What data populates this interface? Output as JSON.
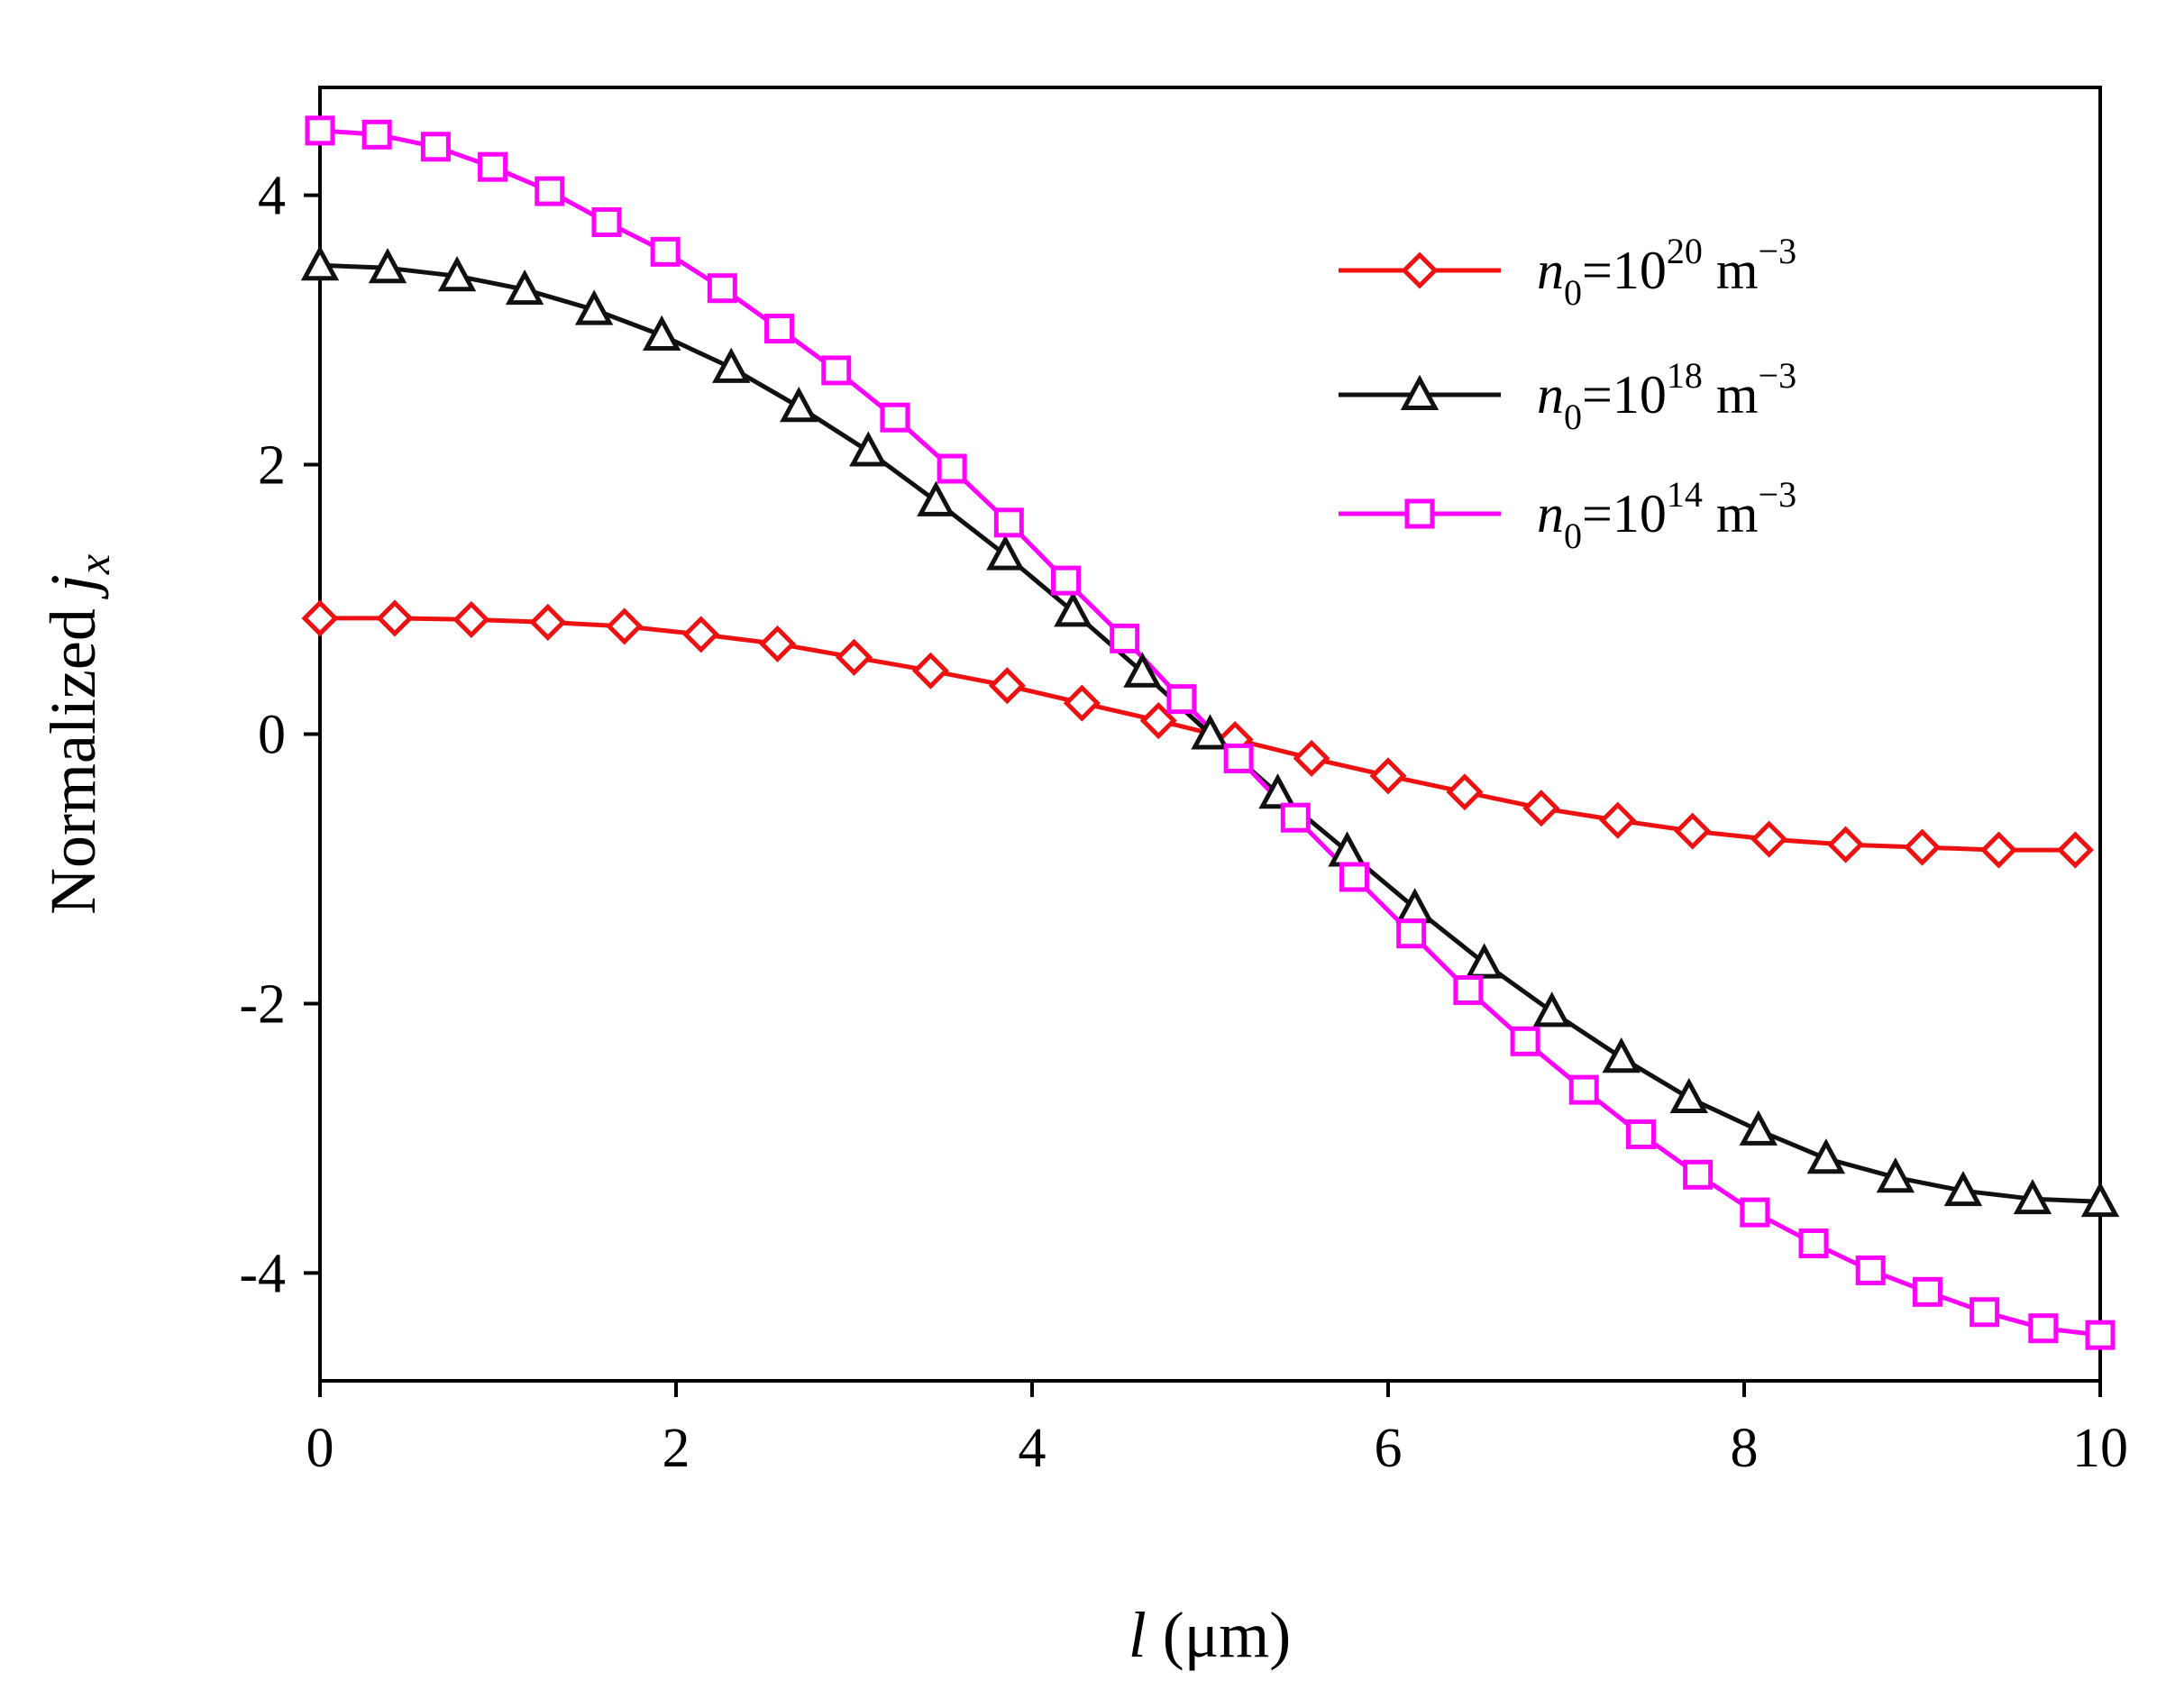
{
  "chart_data": {
    "type": "line",
    "title": "",
    "xlabel": {
      "var": "l",
      "unit": "(μm)"
    },
    "ylabel": {
      "prefix": "Normalized ",
      "var": "j",
      "sub": "x"
    },
    "xlim": [
      0,
      10
    ],
    "ylim": [
      -4.8,
      4.8
    ],
    "xticks": [
      0,
      2,
      4,
      6,
      8,
      10
    ],
    "xtick_labels": [
      "0",
      "2",
      "4",
      "6",
      "8",
      "10"
    ],
    "yticks": [
      4,
      2,
      0,
      -2,
      -4
    ],
    "ytick_labels": [
      "4",
      "2",
      "0",
      "-2",
      "-4"
    ],
    "grid": false,
    "legend_position": "top-right",
    "series": [
      {
        "name": "n0=10^20 m^-3",
        "legend": {
          "var": "n",
          "sub": "0",
          "mid": "=10",
          "exp": "20",
          "unit": " m",
          "unit_exp": "−3"
        },
        "color": "#ee1111",
        "marker": "diamond",
        "x": [
          0,
          0.42,
          0.85,
          1.28,
          1.71,
          2.14,
          2.57,
          3.0,
          3.43,
          3.86,
          4.28,
          4.71,
          5.14,
          5.57,
          6.0,
          6.43,
          6.86,
          7.29,
          7.71,
          8.14,
          8.57,
          9.0,
          9.43,
          9.86
        ],
        "y": [
          0.86,
          0.86,
          0.85,
          0.83,
          0.8,
          0.74,
          0.67,
          0.57,
          0.47,
          0.36,
          0.23,
          0.1,
          -0.04,
          -0.18,
          -0.31,
          -0.43,
          -0.55,
          -0.64,
          -0.72,
          -0.78,
          -0.82,
          -0.84,
          -0.86,
          -0.86
        ]
      },
      {
        "name": "n0=10^18 m^-3",
        "legend": {
          "var": "n",
          "sub": "0",
          "mid": "=10",
          "exp": "18",
          "unit": " m",
          "unit_exp": "−3"
        },
        "color": "#111111",
        "marker": "triangle",
        "x": [
          0,
          0.38,
          0.77,
          1.15,
          1.54,
          1.92,
          2.31,
          2.69,
          3.08,
          3.46,
          3.85,
          4.23,
          4.62,
          5.0,
          5.38,
          5.77,
          6.15,
          6.54,
          6.92,
          7.31,
          7.69,
          8.08,
          8.46,
          8.85,
          9.23,
          9.62,
          10.0
        ],
        "y": [
          3.48,
          3.46,
          3.4,
          3.3,
          3.15,
          2.96,
          2.72,
          2.43,
          2.1,
          1.73,
          1.33,
          0.91,
          0.46,
          0.0,
          -0.44,
          -0.87,
          -1.29,
          -1.7,
          -2.06,
          -2.4,
          -2.7,
          -2.94,
          -3.15,
          -3.29,
          -3.39,
          -3.45,
          -3.47
        ]
      },
      {
        "name": "n0=10^14 m^-3",
        "legend": {
          "var": "n",
          "sub": "0",
          "mid": "=10",
          "exp": "14",
          "unit": " m",
          "unit_exp": "−3"
        },
        "color": "#ff00ff",
        "marker": "square",
        "x": [
          0,
          0.32,
          0.65,
          0.97,
          1.29,
          1.61,
          1.94,
          2.26,
          2.58,
          2.9,
          3.23,
          3.55,
          3.87,
          4.19,
          4.52,
          4.84,
          5.16,
          5.48,
          5.81,
          6.13,
          6.45,
          6.77,
          7.1,
          7.42,
          7.74,
          8.06,
          8.39,
          8.71,
          9.03,
          9.35,
          9.68,
          10.0
        ],
        "y": [
          4.48,
          4.45,
          4.36,
          4.21,
          4.03,
          3.8,
          3.58,
          3.31,
          3.01,
          2.7,
          2.35,
          1.97,
          1.57,
          1.14,
          0.71,
          0.26,
          -0.18,
          -0.62,
          -1.06,
          -1.48,
          -1.9,
          -2.28,
          -2.64,
          -2.97,
          -3.27,
          -3.55,
          -3.78,
          -3.98,
          -4.14,
          -4.29,
          -4.41,
          -4.46
        ]
      }
    ]
  }
}
